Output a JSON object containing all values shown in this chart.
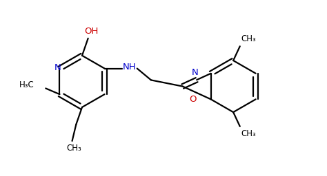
{
  "background_color": "#ffffff",
  "bond_color": "#000000",
  "nitrogen_color": "#0000cc",
  "oxygen_color": "#cc0000",
  "line_width": 1.6,
  "figsize": [
    4.74,
    2.56
  ],
  "dpi": 100,
  "xlim": [
    0,
    9.5
  ],
  "ylim": [
    0,
    5.2
  ]
}
